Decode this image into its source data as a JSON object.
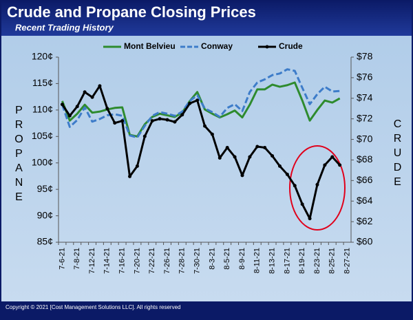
{
  "chart_data": {
    "type": "line",
    "title": "Crude and Propane Closing Prices",
    "subtitle": "Recent Trading History",
    "y_label": "PROPANE",
    "y2_label": "CRUDE",
    "footer": "Copyright © 2021 [Cost Management Solutions LLC].  All rights reserved",
    "categories": [
      "7-6-21",
      null,
      "7-8-21",
      null,
      "7-12-21",
      null,
      "7-14-21",
      null,
      "7-16-21",
      null,
      "7-20-21",
      null,
      "7-22-21",
      null,
      "7-26-21",
      null,
      "7-28-21",
      null,
      "7-30-21",
      null,
      "8-3-21",
      null,
      "8-5-21",
      null,
      "8-9-21",
      null,
      "8-11-21",
      null,
      "8-13-21",
      null,
      "8-17-21",
      null,
      "8-19-21",
      null,
      "8-23-21",
      null,
      "8-25-21",
      null,
      "8-27-21"
    ],
    "series": [
      {
        "name": "Mont Belvieu",
        "color": "#2e8b2e",
        "dash": false,
        "marker": false,
        "values": [
          111.7,
          108.0,
          109.3,
          111.0,
          109.5,
          109.7,
          110.1,
          110.4,
          110.5,
          105.3,
          105.0,
          107.3,
          108.7,
          109.3,
          109.0,
          108.7,
          109.5,
          111.7,
          113.4,
          110.1,
          109.3,
          108.6,
          109.2,
          109.9,
          108.6,
          111.0,
          113.9,
          113.9,
          114.8,
          114.4,
          114.7,
          115.2,
          111.8,
          108.0,
          110.0,
          111.8,
          111.4,
          112.2,
          null
        ]
      },
      {
        "name": "Conway",
        "color": "#3d7cc9",
        "dash": true,
        "marker": false,
        "values": [
          111.0,
          106.8,
          108.1,
          110.5,
          107.8,
          108.3,
          109.0,
          109.2,
          108.9,
          105.2,
          104.8,
          107.0,
          108.9,
          109.6,
          109.3,
          108.9,
          109.7,
          111.7,
          112.8,
          110.3,
          109.6,
          108.7,
          110.4,
          111.1,
          109.8,
          113.4,
          115.2,
          115.8,
          116.6,
          116.9,
          117.7,
          117.4,
          114.2,
          111.1,
          113.0,
          114.4,
          113.5,
          113.6,
          null
        ]
      },
      {
        "name": "Crude",
        "color": "#000000",
        "dash": false,
        "marker": true,
        "axis": "y2",
        "values": [
          73.4,
          72.3,
          73.2,
          74.6,
          74.1,
          75.2,
          73.0,
          71.6,
          71.8,
          66.4,
          67.4,
          70.3,
          71.8,
          72.0,
          71.9,
          71.7,
          72.4,
          73.5,
          73.8,
          71.3,
          70.5,
          68.2,
          69.2,
          68.3,
          66.5,
          68.3,
          69.3,
          69.2,
          68.4,
          67.4,
          66.6,
          65.5,
          63.7,
          62.3,
          65.6,
          67.5,
          68.3,
          67.5,
          null
        ]
      }
    ],
    "ylim": [
      85,
      120
    ],
    "yticks": [
      {
        "value": 85,
        "label": "85¢"
      },
      {
        "value": 90,
        "label": "90¢"
      },
      {
        "value": 95,
        "label": "95¢"
      },
      {
        "value": 100,
        "label": "100¢"
      },
      {
        "value": 105,
        "label": "105¢"
      },
      {
        "value": 110,
        "label": "110¢"
      },
      {
        "value": 115,
        "label": "115¢"
      },
      {
        "value": 120,
        "label": "120¢"
      }
    ],
    "y2lim": [
      60,
      78
    ],
    "y2ticks": [
      {
        "value": 60,
        "label": "$60"
      },
      {
        "value": 62,
        "label": "$62"
      },
      {
        "value": 64,
        "label": "$64"
      },
      {
        "value": 66,
        "label": "$66"
      },
      {
        "value": 68,
        "label": "$68"
      },
      {
        "value": 70,
        "label": "$70"
      },
      {
        "value": 72,
        "label": "$72"
      },
      {
        "value": 74,
        "label": "$74"
      },
      {
        "value": 76,
        "label": "$76"
      },
      {
        "value": 78,
        "label": "$78"
      }
    ],
    "grid": false,
    "legend": "top"
  }
}
